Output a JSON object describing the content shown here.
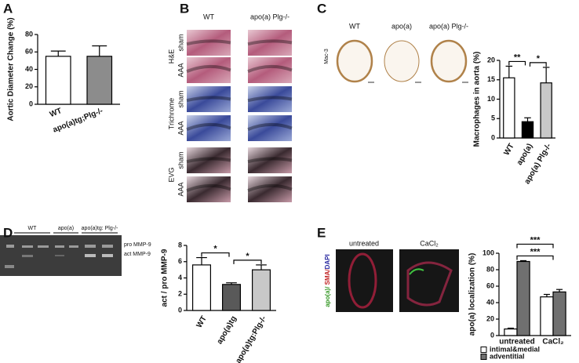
{
  "chart_data": [
    {
      "type": "bar",
      "panel": "A",
      "ylabel": "Aortic Diameter Change (%)",
      "categories": [
        "WT",
        "apo(a)tg;Plg-/-"
      ],
      "values": [
        55,
        55
      ],
      "errors": [
        6,
        12
      ],
      "colors": [
        "#ffffff",
        "#8c8c8c"
      ],
      "ylim": [
        0,
        80
      ],
      "yticks": [
        0,
        20,
        40,
        60,
        80
      ]
    },
    {
      "type": "bar",
      "panel": "C",
      "ylabel": "Macrophages in aorta (%)",
      "categories": [
        "WT",
        "apo(a)",
        "apo(a) Plg-/-"
      ],
      "values": [
        15.5,
        4.2,
        14.2
      ],
      "errors": [
        3,
        1,
        4
      ],
      "colors": [
        "#ffffff",
        "#000000",
        "#c8c8c8"
      ],
      "ylim": [
        0,
        20
      ],
      "yticks": [
        0,
        5,
        10,
        15,
        20
      ],
      "annotations": [
        {
          "text": "**",
          "between": [
            "WT",
            "apo(a)"
          ]
        },
        {
          "text": "*",
          "between": [
            "apo(a)",
            "apo(a) Plg-/-"
          ]
        }
      ]
    },
    {
      "type": "bar",
      "panel": "D",
      "ylabel": "act / pro MMP-9",
      "categories": [
        "WT",
        "apo(a)tg",
        "apo(a)tg:Plg-/-"
      ],
      "values": [
        5.6,
        3.2,
        5.0
      ],
      "errors": [
        0.9,
        0.2,
        0.6
      ],
      "colors": [
        "#ffffff",
        "#595959",
        "#c8c8c8"
      ],
      "ylim": [
        0,
        8
      ],
      "yticks": [
        0,
        2,
        4,
        6,
        8
      ],
      "annotations": [
        {
          "text": "*",
          "between": [
            "WT",
            "apo(a)tg"
          ]
        },
        {
          "text": "*",
          "between": [
            "apo(a)tg",
            "apo(a)tg:Plg-/-"
          ]
        }
      ]
    },
    {
      "type": "grouped_bar",
      "panel": "E",
      "ylabel": "apo(a) localization (%)",
      "categories": [
        "untreated",
        "CaCl₂"
      ],
      "series": [
        {
          "name": "intimal&medial",
          "color": "#ffffff",
          "values": [
            8,
            47
          ],
          "errors": [
            1,
            3
          ]
        },
        {
          "name": "adventitial",
          "color": "#707070",
          "values": [
            90,
            53
          ],
          "errors": [
            1,
            3
          ]
        }
      ],
      "ylim": [
        0,
        100
      ],
      "yticks": [
        0,
        20,
        40,
        60,
        80,
        100
      ],
      "annotations": [
        {
          "text": "***",
          "between": [
            "untreated",
            "CaCl₂"
          ]
        },
        {
          "text": "***",
          "between": [
            "untreated",
            "CaCl₂"
          ]
        }
      ]
    }
  ],
  "histology": {
    "panel": "B",
    "columns": [
      "WT",
      "apo(a) Plg-/-"
    ],
    "stains": [
      {
        "name": "H&E",
        "rows": [
          "sham",
          "AAA"
        ]
      },
      {
        "name": "Trichrome",
        "rows": [
          "sham",
          "AAA"
        ]
      },
      {
        "name": "EVG",
        "rows": [
          "sham",
          "AAA"
        ]
      }
    ]
  },
  "mac3": {
    "label": "Mac-3",
    "columns": [
      "WT",
      "apo(a)",
      "apo(a) Plg-/-"
    ]
  },
  "blot": {
    "lanes": [
      "WT",
      "apo(a)",
      "apo(a)tg: Plg-/-"
    ],
    "bands": [
      "pro MMP-9",
      "act MMP-9"
    ]
  },
  "immuno": {
    "columns": [
      "untreated",
      "CaCl₂"
    ],
    "stain_label": [
      "apo(a)/ ",
      "SMA/",
      "DAPI"
    ]
  }
}
